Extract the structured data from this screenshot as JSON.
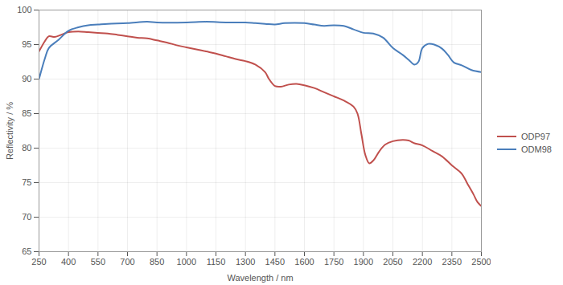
{
  "chart_data": {
    "type": "line",
    "xlabel": "Wavelength / nm",
    "ylabel": "Reflectivity / %",
    "xlim": [
      250,
      2500
    ],
    "xticks": [
      250,
      400,
      550,
      700,
      850,
      1000,
      1150,
      1300,
      1450,
      1600,
      1750,
      1900,
      2050,
      2200,
      2350,
      2500
    ],
    "ylim": [
      65,
      100
    ],
    "yticks": [
      65,
      70,
      75,
      80,
      85,
      90,
      95,
      100
    ],
    "grid": true,
    "legend": "right",
    "series": [
      {
        "name": "ODP97",
        "color": "#c0504d",
        "x": [
          250,
          280,
          300,
          330,
          370,
          400,
          450,
          500,
          550,
          600,
          650,
          700,
          750,
          800,
          850,
          900,
          950,
          1000,
          1050,
          1100,
          1150,
          1200,
          1250,
          1300,
          1350,
          1400,
          1420,
          1450,
          1480,
          1520,
          1560,
          1600,
          1650,
          1700,
          1750,
          1800,
          1850,
          1870,
          1890,
          1910,
          1930,
          1950,
          1980,
          2010,
          2050,
          2100,
          2130,
          2160,
          2200,
          2250,
          2300,
          2350,
          2400,
          2430,
          2460,
          2480,
          2500
        ],
        "values": [
          94.0,
          95.5,
          96.2,
          96.1,
          96.5,
          96.8,
          96.9,
          96.8,
          96.7,
          96.6,
          96.4,
          96.2,
          96.0,
          95.9,
          95.6,
          95.3,
          94.9,
          94.6,
          94.3,
          94.0,
          93.7,
          93.3,
          92.9,
          92.6,
          92.1,
          91.0,
          90.0,
          89.0,
          88.9,
          89.2,
          89.3,
          89.1,
          88.7,
          88.1,
          87.5,
          86.9,
          86.0,
          85.0,
          82.0,
          79.0,
          77.8,
          78.2,
          79.5,
          80.5,
          81.0,
          81.2,
          81.1,
          80.7,
          80.4,
          79.6,
          78.8,
          77.5,
          76.3,
          74.8,
          73.3,
          72.2,
          71.6
        ]
      },
      {
        "name": "ODM98",
        "color": "#4a7ebb",
        "x": [
          250,
          280,
          300,
          350,
          400,
          450,
          500,
          550,
          600,
          700,
          800,
          850,
          1000,
          1100,
          1200,
          1300,
          1350,
          1400,
          1450,
          1500,
          1600,
          1650,
          1700,
          1750,
          1800,
          1850,
          1900,
          1950,
          2000,
          2050,
          2100,
          2130,
          2160,
          2180,
          2200,
          2230,
          2260,
          2300,
          2330,
          2360,
          2400,
          2450,
          2500
        ],
        "values": [
          90.0,
          93.0,
          94.5,
          95.7,
          97.0,
          97.5,
          97.8,
          97.9,
          98.0,
          98.1,
          98.3,
          98.2,
          98.2,
          98.3,
          98.2,
          98.2,
          98.1,
          98.0,
          97.9,
          98.1,
          98.1,
          97.9,
          97.7,
          97.8,
          97.7,
          97.2,
          96.7,
          96.6,
          96.0,
          94.5,
          93.5,
          92.8,
          92.1,
          92.5,
          94.5,
          95.1,
          95.0,
          94.4,
          93.5,
          92.4,
          92.0,
          91.3,
          91.0
        ]
      }
    ]
  }
}
